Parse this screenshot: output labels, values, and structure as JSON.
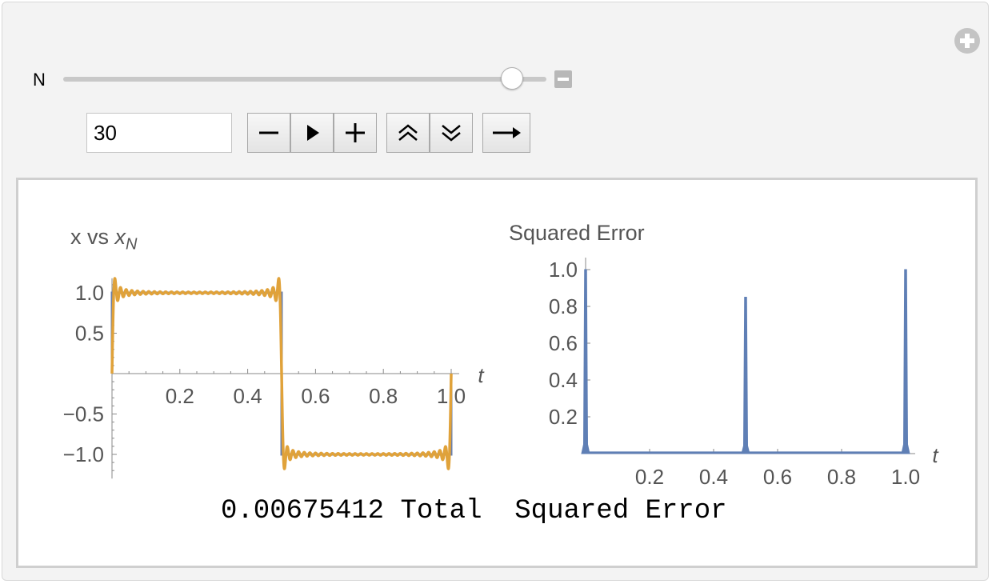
{
  "controls": {
    "n_label": "N",
    "slider": {
      "value": 30,
      "min": 1,
      "max": 31
    },
    "input_value": "30",
    "buttons": [
      {
        "name": "decrement-button",
        "icon": "minus-icon"
      },
      {
        "name": "play-button",
        "icon": "play-icon"
      },
      {
        "name": "increment-button",
        "icon": "plus-icon"
      },
      {
        "name": "faster-button",
        "icon": "double-chevron-up-icon"
      },
      {
        "name": "slower-button",
        "icon": "double-chevron-down-icon"
      },
      {
        "name": "direction-button",
        "icon": "arrow-right-icon"
      }
    ]
  },
  "colors": {
    "approximation": "#e0a23a",
    "target": "#6a7fab",
    "error": "#5f7fb5",
    "axis": "#8a8a8a",
    "tick_label": "#555555"
  },
  "output": {
    "total_value": "0.00675412",
    "total_label": "Total  Squared Error"
  },
  "chart_data": [
    {
      "type": "line",
      "title": "x vs x_N",
      "title_main": "x vs ",
      "title_var": "x",
      "title_sub": "N",
      "xlabel": "t",
      "ylabel": "",
      "xlim": [
        0,
        1.0
      ],
      "ylim": [
        -1.2,
        1.2
      ],
      "x_ticks": [
        "0.2",
        "0.4",
        "0.6",
        "0.8",
        "1.0"
      ],
      "y_ticks": [
        "1.0",
        "0.5",
        "−0.5",
        "−1.0"
      ],
      "series": [
        {
          "kind": "square_wave",
          "period": 1.0,
          "amplitude": 1
        },
        {
          "kind": "fourier_partial_sum",
          "terms": 30,
          "amplitude": 1
        }
      ]
    },
    {
      "type": "line",
      "title": "Squared Error",
      "xlabel": "t",
      "ylabel": "",
      "xlim": [
        0,
        1.0
      ],
      "ylim": [
        0,
        1.0
      ],
      "x_ticks": [
        "0.2",
        "0.4",
        "0.6",
        "0.8",
        "1.0"
      ],
      "y_ticks": [
        "1.0",
        "0.8",
        "0.6",
        "0.4",
        "0.2"
      ],
      "peaks": [
        {
          "t": 0.0,
          "value": 1.0
        },
        {
          "t": 0.5,
          "value": 0.85
        },
        {
          "t": 1.0,
          "value": 1.0
        }
      ]
    }
  ]
}
